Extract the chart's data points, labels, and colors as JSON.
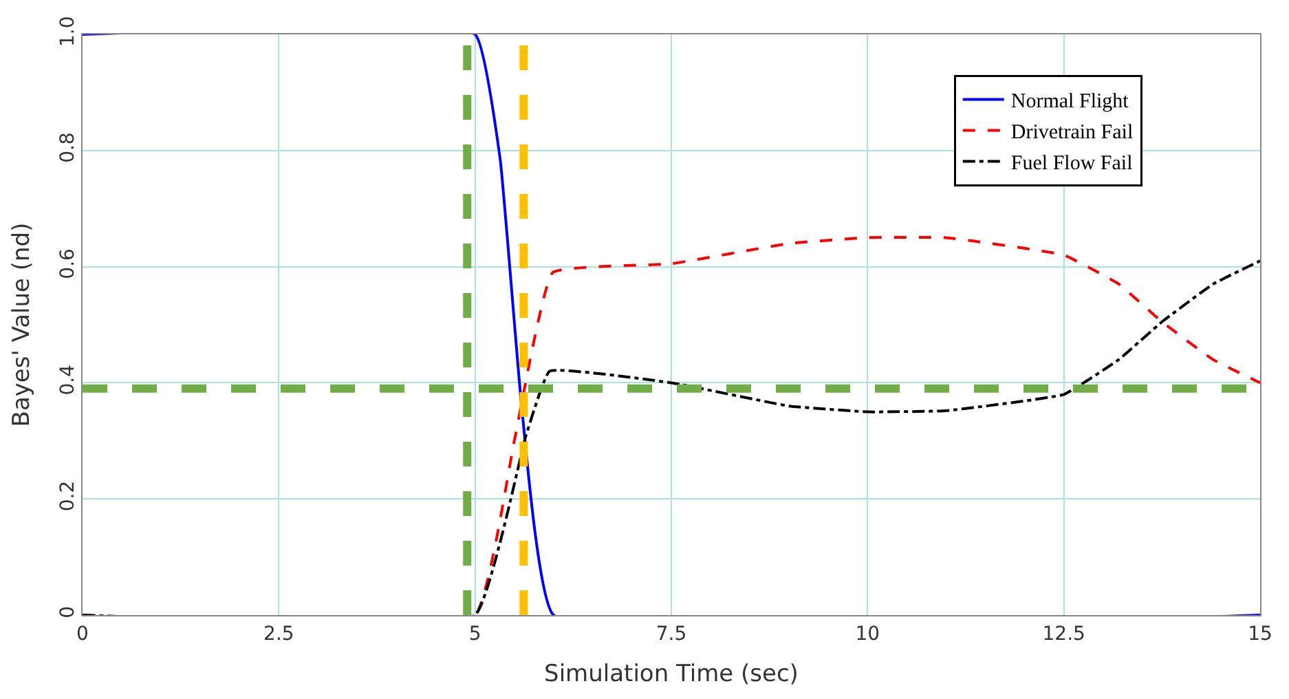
{
  "chart_data": {
    "type": "line",
    "xlabel": "Simulation Time (sec)",
    "ylabel": "Bayes' Value (nd)",
    "xlim": [
      0,
      15
    ],
    "ylim": [
      0,
      1
    ],
    "xticks": [
      0,
      2.5,
      5,
      7.5,
      10,
      12.5,
      15
    ],
    "yticks": [
      0,
      0.2,
      0.4,
      0.6,
      0.8,
      {
        "value": 1,
        "label": "1.0"
      }
    ],
    "grid": true,
    "legend": "top right",
    "series": [
      {
        "name": "Normal Flight",
        "color": "#0000ff",
        "line_style": "solid",
        "x": [
          0,
          5,
          5.32,
          5.6,
          6,
          15
        ],
        "values": [
          1,
          1,
          0.785,
          0.35,
          0,
          0
        ]
      },
      {
        "name": "Drivetrain Fail",
        "color": "#ff0000",
        "line_style": "dashed",
        "x": [
          0,
          5,
          5.5,
          5.99,
          7.5,
          9,
          10,
          11,
          12.5,
          13.2,
          13.75,
          14.4,
          15
        ],
        "values": [
          0,
          0,
          0.3,
          0.59,
          0.605,
          0.64,
          0.65,
          0.65,
          0.62,
          0.57,
          0.505,
          0.44,
          0.4
        ]
      },
      {
        "name": "Fuel Flow Fail",
        "color": "#000000",
        "line_style": "dashdot",
        "x": [
          0,
          5,
          5.65,
          5.95,
          7.5,
          9,
          10,
          11,
          12.5,
          13.2,
          13.75,
          14.4,
          15
        ],
        "values": [
          0,
          0,
          0.31,
          0.42,
          0.4,
          0.36,
          0.35,
          0.352,
          0.38,
          0.44,
          0.505,
          0.57,
          0.61
        ]
      }
    ],
    "ref_lines": [
      {
        "axis": "y",
        "value": 0.39,
        "color": "#70ad47",
        "line_style": "dashed"
      },
      {
        "axis": "x",
        "value": 4.9,
        "color": "#70ad47",
        "line_style": "dashed"
      },
      {
        "axis": "x",
        "value": 5.62,
        "color": "#ffc000",
        "line_style": "dashed"
      }
    ]
  }
}
